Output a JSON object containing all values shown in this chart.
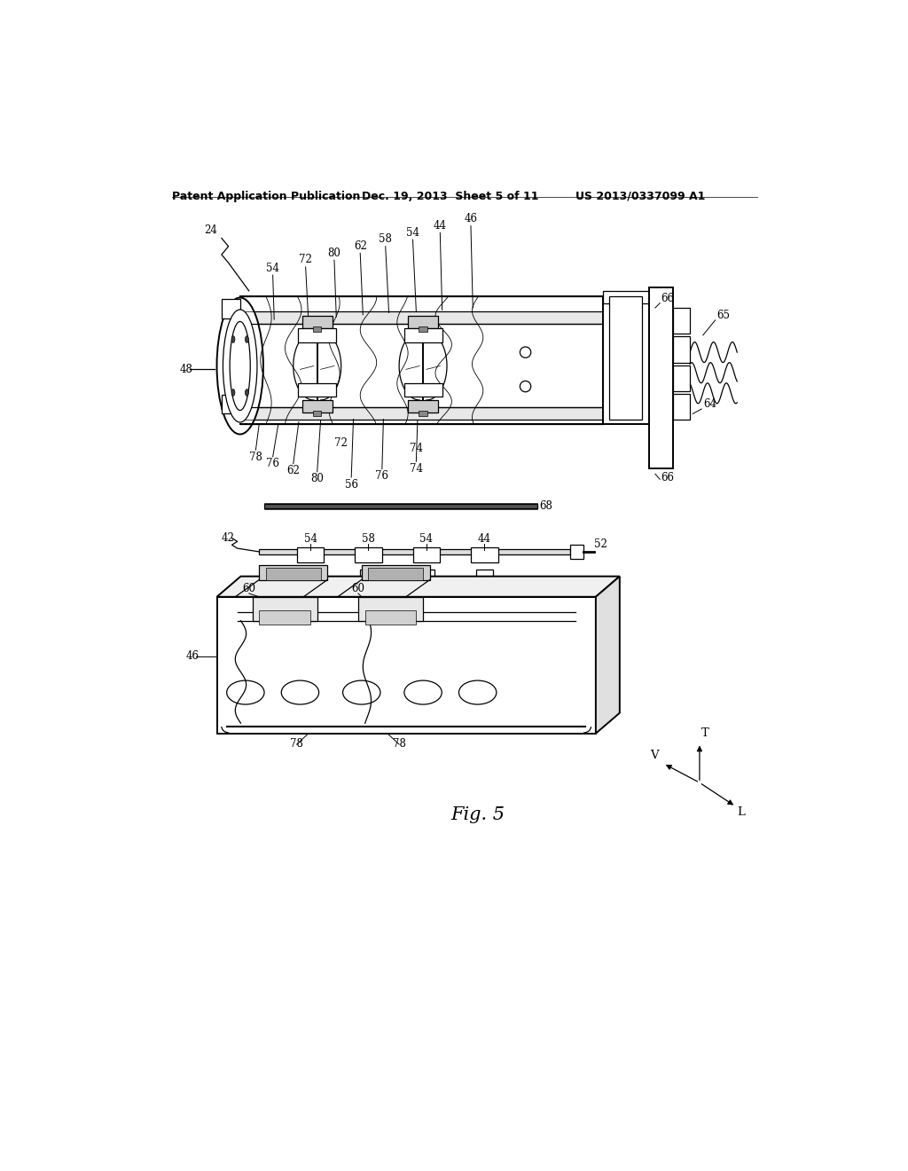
{
  "bg_color": "#ffffff",
  "header_left": "Patent Application Publication",
  "header_mid": "Dec. 19, 2013  Sheet 5 of 11",
  "header_right": "US 2013/0337099 A1",
  "fig_label": "Fig. 5",
  "header_fontsize": 9,
  "label_fontsize": 8.5
}
